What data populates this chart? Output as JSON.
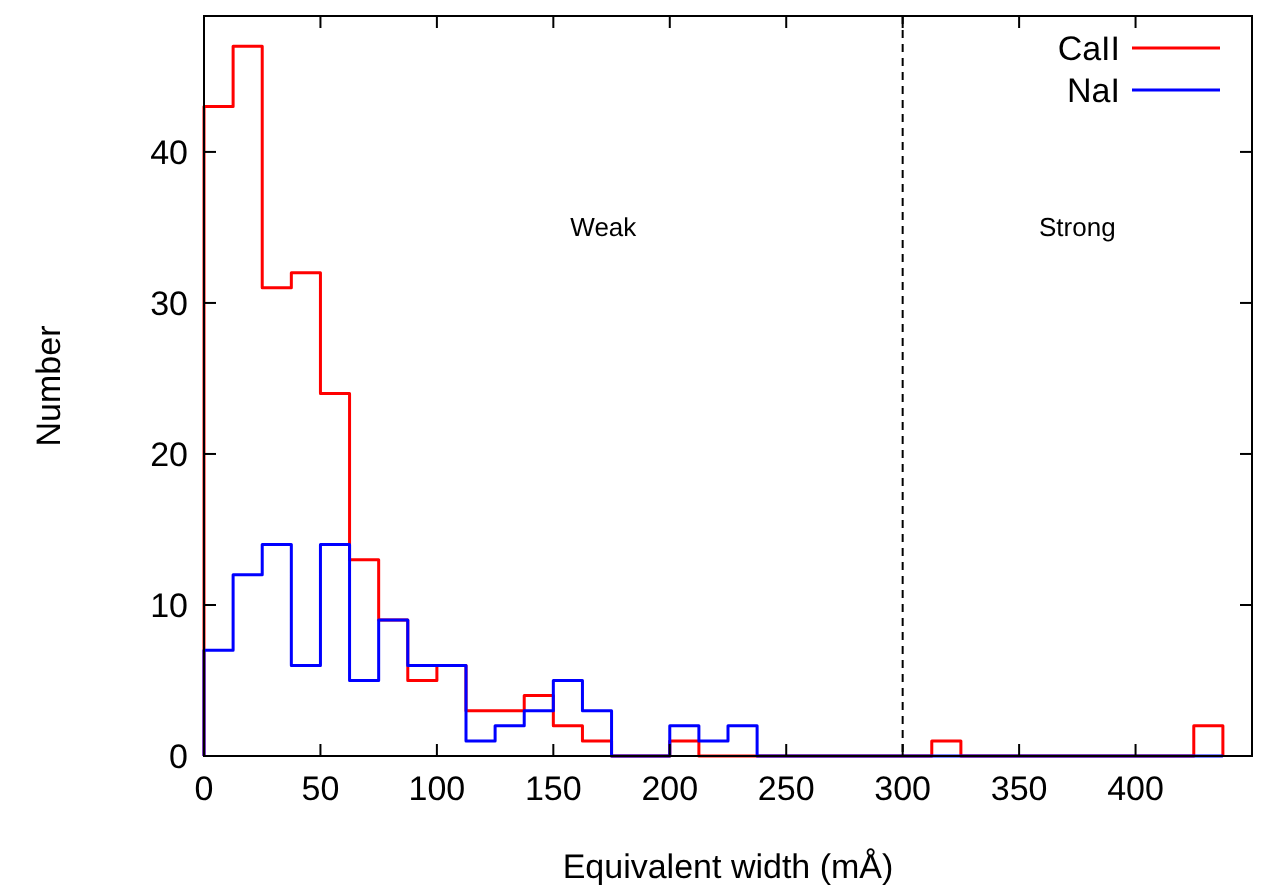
{
  "chart_data": {
    "type": "histogram",
    "xlabel": "Equivalent width (mÅ)",
    "ylabel": "Number",
    "bins": [
      0,
      12.5,
      25,
      37.5,
      50,
      62.5,
      75,
      87.5,
      100,
      112.5,
      125,
      137.5,
      150,
      162.5,
      175,
      187.5,
      200,
      212.5,
      225,
      237.5,
      250,
      262.5,
      275,
      287.5,
      300,
      312.5,
      325,
      337.5,
      350,
      362.5,
      375,
      387.5,
      400,
      412.5,
      425,
      437.5
    ],
    "series": [
      {
        "name": "CaII",
        "color": "#ff0000",
        "values": [
          43,
          47,
          31,
          32,
          24,
          13,
          9,
          5,
          6,
          3,
          3,
          4,
          2,
          1,
          0,
          0,
          1,
          0,
          0,
          0,
          0,
          0,
          0,
          0,
          0,
          1,
          0,
          0,
          0,
          0,
          0,
          0,
          0,
          0,
          2
        ]
      },
      {
        "name": "NaI",
        "color": "#0000ff",
        "values": [
          7,
          12,
          14,
          6,
          14,
          5,
          9,
          6,
          6,
          1,
          2,
          3,
          5,
          3,
          0,
          0,
          2,
          1,
          2,
          0,
          0,
          0,
          0,
          0,
          0,
          0,
          0,
          0,
          0,
          0,
          0,
          0,
          0,
          0,
          0
        ]
      }
    ],
    "xlim": [
      0,
      450
    ],
    "xticks": [
      0,
      50,
      100,
      150,
      200,
      250,
      300,
      350,
      400
    ],
    "ylim": [
      0,
      49
    ],
    "yticks": [
      0,
      10,
      20,
      30,
      40
    ],
    "ref_lines": [
      {
        "axis": "x",
        "value": 300,
        "color": "#000000",
        "line_style": "dashed"
      }
    ],
    "annotations": [
      "Weak",
      "Strong"
    ],
    "legend": "top right",
    "grid": false
  }
}
